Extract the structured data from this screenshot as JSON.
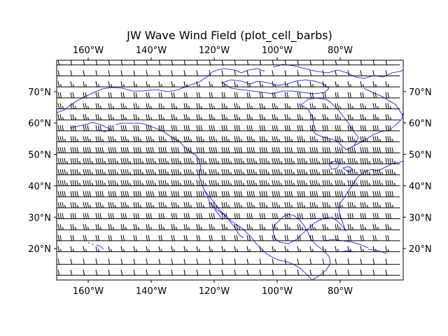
{
  "chart_data": {
    "type": "barbs",
    "title": "JW Wave Wind Field (plot_cell_barbs)",
    "xlim": [
      -170,
      -60
    ],
    "ylim": [
      10,
      80
    ],
    "x_ticks": [
      {
        "value": -160,
        "label": "160°W"
      },
      {
        "value": -140,
        "label": "140°W"
      },
      {
        "value": -120,
        "label": "120°W"
      },
      {
        "value": -100,
        "label": "100°W"
      },
      {
        "value": -80,
        "label": "80°W"
      }
    ],
    "y_ticks": [
      {
        "value": 20,
        "label": "20°N"
      },
      {
        "value": 30,
        "label": "30°N"
      },
      {
        "value": 40,
        "label": "40°N"
      },
      {
        "value": 50,
        "label": "50°N"
      },
      {
        "value": 60,
        "label": "60°N"
      },
      {
        "value": 70,
        "label": "70°N"
      }
    ],
    "barb_rows_lat": [
      11.5,
      15,
      19,
      22.5,
      26,
      29.5,
      33,
      36.5,
      40,
      43.5,
      47,
      50.5,
      54,
      57.5,
      61,
      64.5,
      68,
      71.5,
      75,
      78.5
    ],
    "barb_cols_lon": [
      -169,
      -165,
      -161,
      -157,
      -153,
      -149,
      -145,
      -141,
      -137,
      -133,
      -129,
      -125,
      -121,
      -117,
      -113,
      -109,
      -105,
      -101,
      -97,
      -93,
      -89,
      -85,
      -81,
      -77,
      -73,
      -69,
      -65,
      -61
    ],
    "barb_row_speeds_kt": [
      10,
      10,
      15,
      20,
      25,
      30,
      35,
      40,
      45,
      45,
      45,
      40,
      35,
      30,
      25,
      25,
      20,
      15,
      10,
      10
    ],
    "barb_direction": "westerly",
    "coastline_color": "#0000ff",
    "grid": false
  }
}
